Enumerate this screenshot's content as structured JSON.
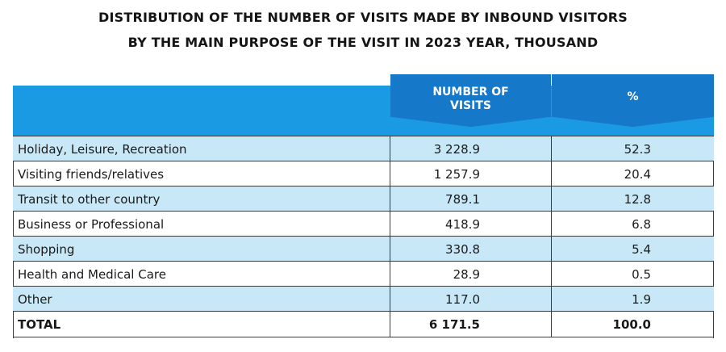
{
  "title": {
    "line1": "DISTRIBUTION OF THE NUMBER OF VISITS MADE BY INBOUND VISITORS",
    "line2": "BY THE MAIN PURPOSE OF THE VISIT IN 2023 YEAR, THOUSAND"
  },
  "columns": {
    "visits_line1": "NUMBER OF",
    "visits_line2": "VISITS",
    "percent": "%"
  },
  "rows": [
    {
      "label": "Holiday, Leisure, Recreation",
      "visits": "3 228.9",
      "percent": "52.3"
    },
    {
      "label": "Visiting friends/relatives",
      "visits": "1 257.9",
      "percent": "20.4"
    },
    {
      "label": "Transit to other country",
      "visits": "789.1",
      "percent": "12.8"
    },
    {
      "label": "Business or Professional",
      "visits": "418.9",
      "percent": "6.8"
    },
    {
      "label": "Shopping",
      "visits": "330.8",
      "percent": "5.4"
    },
    {
      "label": "Health and Medical Care",
      "visits": "28.9",
      "percent": "0.5"
    },
    {
      "label": "Other",
      "visits": "117.0",
      "percent": "1.9"
    }
  ],
  "total": {
    "label": "TOTAL",
    "visits": "6 171.5",
    "percent": "100.0"
  },
  "colors": {
    "header_band": "#1a9ae2",
    "header_column": "#1578c9",
    "row_shade": "#c8e8f8"
  }
}
